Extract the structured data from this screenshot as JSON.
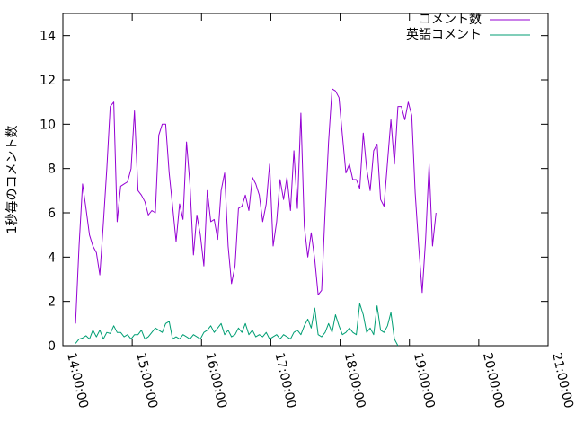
{
  "chart_data": {
    "type": "line",
    "ylabel": "1秒毎のコメント数",
    "xlabel": "",
    "ylim": [
      0,
      15
    ],
    "yticks": [
      0,
      2,
      4,
      6,
      8,
      10,
      12,
      14
    ],
    "xlim": [
      "14:00:00",
      "21:00:00"
    ],
    "xticks": [
      "14:00:00",
      "15:00:00",
      "16:00:00",
      "17:00:00",
      "18:00:00",
      "19:00:00",
      "20:00:00",
      "21:00:00"
    ],
    "grid": false,
    "legend_position": "top-right",
    "series": [
      {
        "name": "コメント数",
        "color": "#9400d3",
        "points": [
          [
            "14:11:00",
            1.0
          ],
          [
            "14:14:00",
            4.5
          ],
          [
            "14:17:00",
            7.3
          ],
          [
            "14:20:00",
            6.2
          ],
          [
            "14:23:00",
            5.0
          ],
          [
            "14:26:00",
            4.5
          ],
          [
            "14:29:00",
            4.2
          ],
          [
            "14:32:00",
            3.2
          ],
          [
            "14:35:00",
            5.5
          ],
          [
            "14:38:00",
            8.0
          ],
          [
            "14:41:00",
            10.8
          ],
          [
            "14:44:00",
            11.0
          ],
          [
            "14:47:00",
            5.6
          ],
          [
            "14:50:00",
            7.2
          ],
          [
            "14:53:00",
            7.3
          ],
          [
            "14:56:00",
            7.4
          ],
          [
            "14:59:00",
            8.0
          ],
          [
            "15:02:00",
            10.6
          ],
          [
            "15:05:00",
            7.0
          ],
          [
            "15:08:00",
            6.8
          ],
          [
            "15:11:00",
            6.5
          ],
          [
            "15:14:00",
            5.9
          ],
          [
            "15:17:00",
            6.1
          ],
          [
            "15:20:00",
            6.0
          ],
          [
            "15:23:00",
            9.5
          ],
          [
            "15:26:00",
            10.0
          ],
          [
            "15:29:00",
            10.0
          ],
          [
            "15:32:00",
            7.8
          ],
          [
            "15:35:00",
            6.3
          ],
          [
            "15:38:00",
            4.7
          ],
          [
            "15:41:00",
            6.4
          ],
          [
            "15:44:00",
            5.7
          ],
          [
            "15:47:00",
            9.2
          ],
          [
            "15:50:00",
            7.3
          ],
          [
            "15:53:00",
            4.1
          ],
          [
            "15:56:00",
            5.9
          ],
          [
            "15:59:00",
            5.0
          ],
          [
            "16:02:00",
            3.6
          ],
          [
            "16:05:00",
            7.0
          ],
          [
            "16:08:00",
            5.6
          ],
          [
            "16:11:00",
            5.7
          ],
          [
            "16:14:00",
            4.8
          ],
          [
            "16:17:00",
            7.0
          ],
          [
            "16:20:00",
            7.8
          ],
          [
            "16:23:00",
            4.5
          ],
          [
            "16:26:00",
            2.8
          ],
          [
            "16:29:00",
            3.6
          ],
          [
            "16:32:00",
            6.2
          ],
          [
            "16:35:00",
            6.3
          ],
          [
            "16:38:00",
            6.8
          ],
          [
            "16:41:00",
            6.1
          ],
          [
            "16:44:00",
            7.6
          ],
          [
            "16:47:00",
            7.3
          ],
          [
            "16:50:00",
            6.8
          ],
          [
            "16:53:00",
            5.6
          ],
          [
            "16:56:00",
            6.4
          ],
          [
            "16:59:00",
            8.2
          ],
          [
            "17:02:00",
            4.5
          ],
          [
            "17:05:00",
            5.6
          ],
          [
            "17:08:00",
            7.5
          ],
          [
            "17:11:00",
            6.6
          ],
          [
            "17:14:00",
            7.6
          ],
          [
            "17:17:00",
            6.1
          ],
          [
            "17:20:00",
            8.8
          ],
          [
            "17:23:00",
            6.2
          ],
          [
            "17:26:00",
            10.5
          ],
          [
            "17:29:00",
            5.4
          ],
          [
            "17:32:00",
            4.0
          ],
          [
            "17:35:00",
            5.1
          ],
          [
            "17:38:00",
            3.9
          ],
          [
            "17:41:00",
            2.3
          ],
          [
            "17:44:00",
            2.5
          ],
          [
            "17:47:00",
            6.1
          ],
          [
            "17:50:00",
            9.2
          ],
          [
            "17:53:00",
            11.6
          ],
          [
            "17:56:00",
            11.5
          ],
          [
            "17:59:00",
            11.2
          ],
          [
            "18:02:00",
            9.5
          ],
          [
            "18:05:00",
            7.8
          ],
          [
            "18:08:00",
            8.2
          ],
          [
            "18:11:00",
            7.5
          ],
          [
            "18:14:00",
            7.5
          ],
          [
            "18:17:00",
            7.1
          ],
          [
            "18:20:00",
            9.6
          ],
          [
            "18:23:00",
            8.0
          ],
          [
            "18:26:00",
            7.0
          ],
          [
            "18:29:00",
            8.8
          ],
          [
            "18:32:00",
            9.1
          ],
          [
            "18:35:00",
            6.6
          ],
          [
            "18:38:00",
            6.3
          ],
          [
            "18:41:00",
            8.3
          ],
          [
            "18:44:00",
            10.2
          ],
          [
            "18:47:00",
            8.2
          ],
          [
            "18:50:00",
            10.8
          ],
          [
            "18:53:00",
            10.8
          ],
          [
            "18:56:00",
            10.2
          ],
          [
            "18:59:00",
            11.0
          ],
          [
            "19:02:00",
            10.4
          ],
          [
            "19:05:00",
            6.9
          ],
          [
            "19:08:00",
            4.5
          ],
          [
            "19:11:00",
            2.4
          ],
          [
            "19:14:00",
            4.8
          ],
          [
            "19:17:00",
            8.2
          ],
          [
            "19:20:00",
            4.5
          ],
          [
            "19:23:00",
            6.0
          ]
        ]
      },
      {
        "name": "英語コメント",
        "color": "#009e73",
        "points": [
          [
            "14:11:00",
            0.1
          ],
          [
            "14:14:00",
            0.3
          ],
          [
            "14:17:00",
            0.35
          ],
          [
            "14:20:00",
            0.45
          ],
          [
            "14:23:00",
            0.3
          ],
          [
            "14:26:00",
            0.7
          ],
          [
            "14:29:00",
            0.4
          ],
          [
            "14:32:00",
            0.7
          ],
          [
            "14:35:00",
            0.3
          ],
          [
            "14:38:00",
            0.6
          ],
          [
            "14:41:00",
            0.55
          ],
          [
            "14:44:00",
            0.9
          ],
          [
            "14:47:00",
            0.6
          ],
          [
            "14:50:00",
            0.6
          ],
          [
            "14:53:00",
            0.4
          ],
          [
            "14:56:00",
            0.5
          ],
          [
            "14:59:00",
            0.3
          ],
          [
            "15:02:00",
            0.5
          ],
          [
            "15:05:00",
            0.5
          ],
          [
            "15:08:00",
            0.7
          ],
          [
            "15:11:00",
            0.3
          ],
          [
            "15:14:00",
            0.4
          ],
          [
            "15:17:00",
            0.6
          ],
          [
            "15:20:00",
            0.8
          ],
          [
            "15:23:00",
            0.7
          ],
          [
            "15:26:00",
            0.6
          ],
          [
            "15:29:00",
            1.0
          ],
          [
            "15:32:00",
            1.1
          ],
          [
            "15:35:00",
            0.3
          ],
          [
            "15:38:00",
            0.4
          ],
          [
            "15:41:00",
            0.3
          ],
          [
            "15:44:00",
            0.5
          ],
          [
            "15:47:00",
            0.4
          ],
          [
            "15:50:00",
            0.3
          ],
          [
            "15:53:00",
            0.5
          ],
          [
            "15:56:00",
            0.4
          ],
          [
            "15:59:00",
            0.3
          ],
          [
            "16:02:00",
            0.6
          ],
          [
            "16:05:00",
            0.7
          ],
          [
            "16:08:00",
            0.9
          ],
          [
            "16:11:00",
            0.6
          ],
          [
            "16:14:00",
            0.8
          ],
          [
            "16:17:00",
            1.0
          ],
          [
            "16:20:00",
            0.5
          ],
          [
            "16:23:00",
            0.7
          ],
          [
            "16:26:00",
            0.4
          ],
          [
            "16:29:00",
            0.5
          ],
          [
            "16:32:00",
            0.8
          ],
          [
            "16:35:00",
            0.6
          ],
          [
            "16:38:00",
            1.0
          ],
          [
            "16:41:00",
            0.5
          ],
          [
            "16:44:00",
            0.7
          ],
          [
            "16:47:00",
            0.4
          ],
          [
            "16:50:00",
            0.5
          ],
          [
            "16:53:00",
            0.4
          ],
          [
            "16:56:00",
            0.6
          ],
          [
            "16:59:00",
            0.3
          ],
          [
            "17:02:00",
            0.4
          ],
          [
            "17:05:00",
            0.5
          ],
          [
            "17:08:00",
            0.3
          ],
          [
            "17:11:00",
            0.5
          ],
          [
            "17:14:00",
            0.4
          ],
          [
            "17:17:00",
            0.3
          ],
          [
            "17:20:00",
            0.6
          ],
          [
            "17:23:00",
            0.7
          ],
          [
            "17:26:00",
            0.5
          ],
          [
            "17:29:00",
            0.9
          ],
          [
            "17:32:00",
            1.2
          ],
          [
            "17:35:00",
            0.8
          ],
          [
            "17:38:00",
            1.7
          ],
          [
            "17:41:00",
            0.5
          ],
          [
            "17:44:00",
            0.4
          ],
          [
            "17:47:00",
            0.6
          ],
          [
            "17:50:00",
            1.0
          ],
          [
            "17:53:00",
            0.6
          ],
          [
            "17:56:00",
            1.4
          ],
          [
            "17:59:00",
            0.9
          ],
          [
            "18:02:00",
            0.5
          ],
          [
            "18:05:00",
            0.6
          ],
          [
            "18:08:00",
            0.8
          ],
          [
            "18:11:00",
            0.6
          ],
          [
            "18:14:00",
            0.5
          ],
          [
            "18:17:00",
            1.9
          ],
          [
            "18:20:00",
            1.4
          ],
          [
            "18:23:00",
            0.6
          ],
          [
            "18:26:00",
            0.8
          ],
          [
            "18:29:00",
            0.5
          ],
          [
            "18:32:00",
            1.8
          ],
          [
            "18:35:00",
            0.7
          ],
          [
            "18:38:00",
            0.6
          ],
          [
            "18:41:00",
            0.9
          ],
          [
            "18:44:00",
            1.5
          ],
          [
            "18:47:00",
            0.3
          ],
          [
            "18:50:00",
            0.0
          ]
        ]
      }
    ]
  }
}
